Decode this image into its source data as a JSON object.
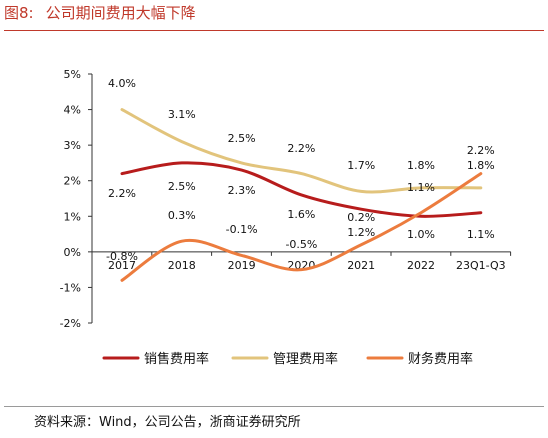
{
  "figure": {
    "number": "图8:",
    "title": "公司期间费用大幅下降",
    "source": "资料来源：Wind，公司公告，浙商证券研究所"
  },
  "chart_data": {
    "type": "line",
    "categories": [
      "2017",
      "2018",
      "2019",
      "2020",
      "2021",
      "2022",
      "23Q1-Q3"
    ],
    "y_ticks": [
      "5%",
      "4%",
      "3%",
      "2%",
      "1%",
      "0%",
      "-1%",
      "-2%"
    ],
    "ylim": [
      -2,
      5
    ],
    "grid": false,
    "legend_position": "bottom",
    "series": [
      {
        "name": "销售费用率",
        "color": "#b71c1c",
        "values": [
          2.2,
          2.5,
          2.3,
          1.6,
          1.2,
          1.0,
          1.1
        ],
        "labels": [
          "2.2%",
          "2.5%",
          "2.3%",
          "1.6%",
          "1.2%",
          "1.0%",
          "1.1%"
        ]
      },
      {
        "name": "管理费用率",
        "color": "#e2c47c",
        "values": [
          4.0,
          3.1,
          2.5,
          2.2,
          1.7,
          1.8,
          1.8
        ],
        "labels": [
          "4.0%",
          "3.1%",
          "2.5%",
          "2.2%",
          "1.7%",
          "1.8%",
          "1.8%"
        ]
      },
      {
        "name": "财务费用率",
        "color": "#ec7c3e",
        "values": [
          -0.8,
          0.3,
          -0.1,
          -0.5,
          0.2,
          1.1,
          2.2
        ],
        "labels": [
          "-0.8%",
          "0.3%",
          "-0.1%",
          "-0.5%",
          "0.2%",
          "1.1%",
          "2.2%"
        ]
      }
    ]
  }
}
